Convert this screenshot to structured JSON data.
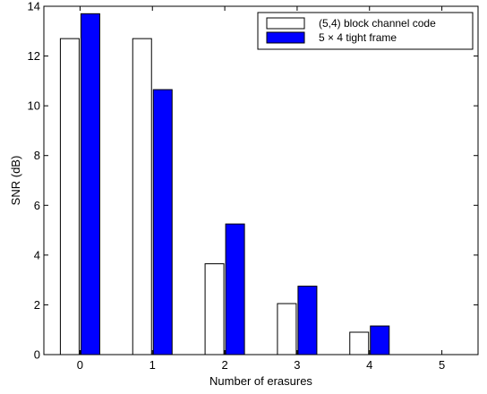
{
  "chart_data": {
    "type": "bar",
    "title": "",
    "xlabel": "Number of erasures",
    "ylabel": "SNR (dB)",
    "categories": [
      "0",
      "1",
      "2",
      "3",
      "4",
      "5"
    ],
    "ylim": [
      0,
      14
    ],
    "yticks": [
      "0",
      "2",
      "4",
      "6",
      "8",
      "10",
      "12",
      "14"
    ],
    "grid": false,
    "legend_position": "top-right",
    "series": [
      {
        "name": "(5,4) block channel code",
        "color": "#ffffff",
        "values": [
          12.7,
          12.7,
          3.65,
          2.05,
          0.9,
          0
        ]
      },
      {
        "name": "5 × 4 tight frame",
        "color": "#0000ff",
        "values": [
          13.7,
          10.65,
          5.25,
          2.75,
          1.15,
          0
        ]
      }
    ]
  }
}
